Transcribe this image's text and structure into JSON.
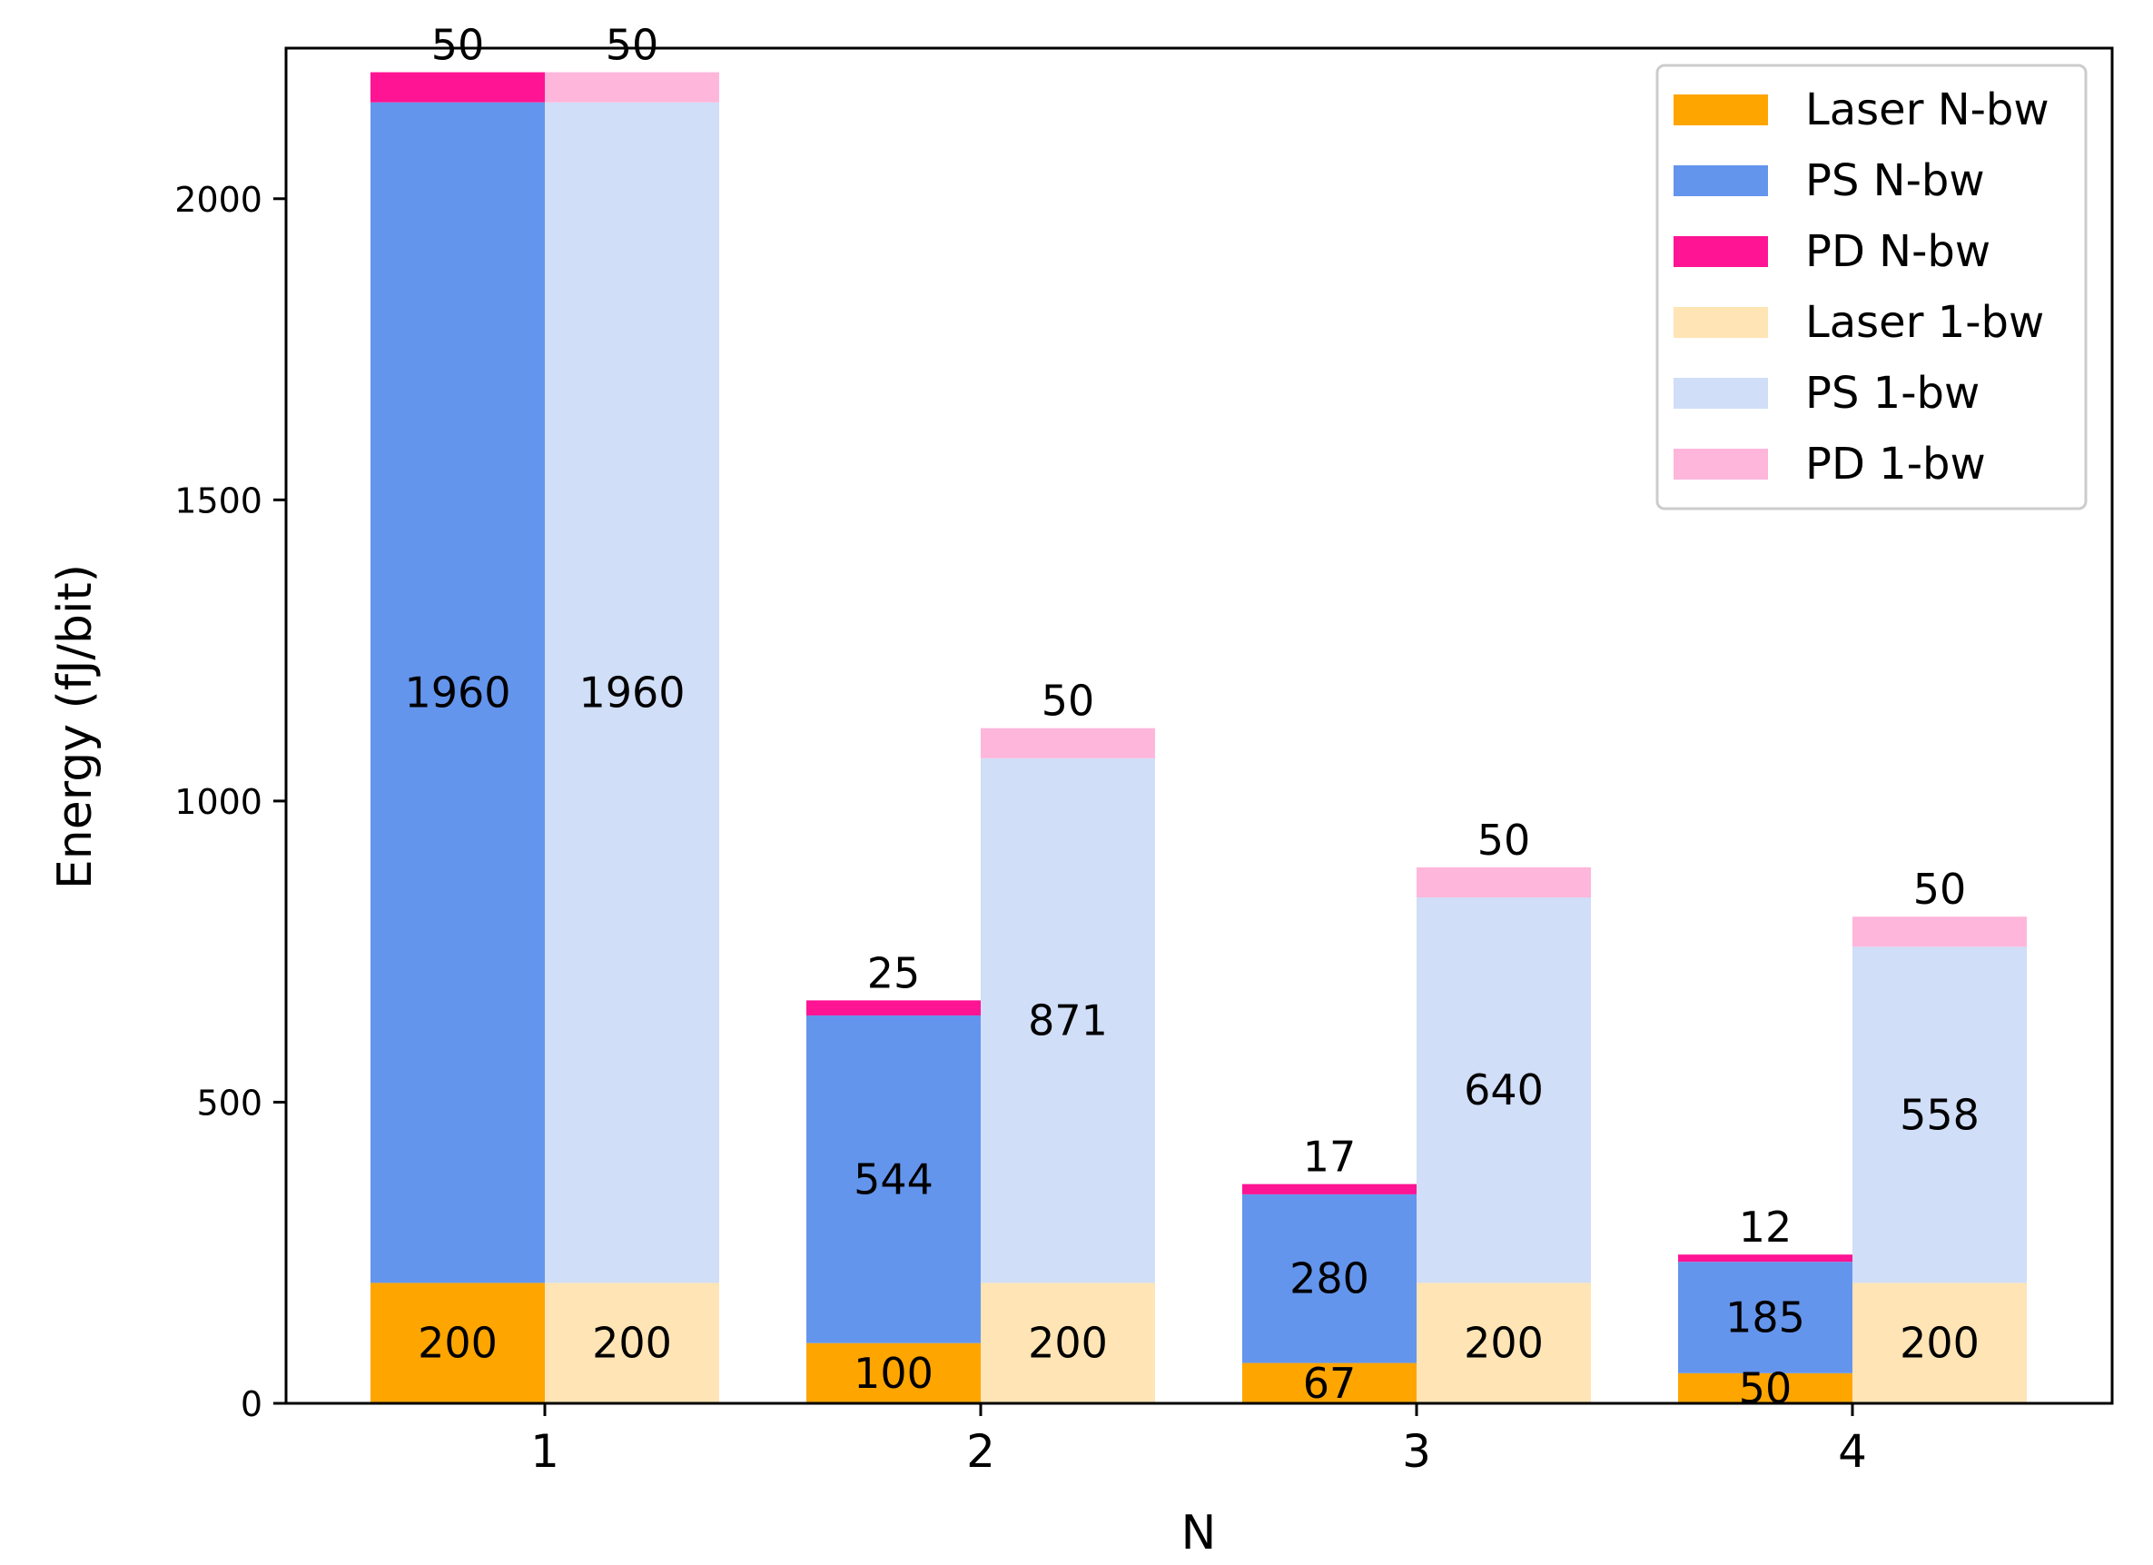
{
  "chart_data": {
    "type": "bar",
    "stacked": true,
    "grouped": true,
    "categories": [
      "1",
      "2",
      "3",
      "4"
    ],
    "xlabel": "N",
    "ylabel": "Energy (fJ/bit)",
    "ylim": [
      0,
      2250
    ],
    "yticks": [
      0,
      500,
      1000,
      1500,
      2000
    ],
    "grid": false,
    "legend_position": "top-right",
    "groups": [
      {
        "name": "N-bw",
        "series": [
          {
            "name": "Laser N-bw",
            "color": "#FFA500",
            "values": [
              200,
              100,
              67,
              50
            ]
          },
          {
            "name": "PS N-bw",
            "color": "#6495ED",
            "values": [
              1960,
              544,
              280,
              185
            ]
          },
          {
            "name": "PD N-bw",
            "color": "#FF1493",
            "values": [
              50,
              25,
              17,
              12
            ]
          }
        ]
      },
      {
        "name": "1-bw",
        "series": [
          {
            "name": "Laser 1-bw",
            "color": "#FFE4B5",
            "values": [
              200,
              200,
              200,
              200
            ]
          },
          {
            "name": "PS 1-bw",
            "color": "#D0DEF7",
            "values": [
              1960,
              871,
              640,
              558
            ]
          },
          {
            "name": "PD 1-bw",
            "color": "#FFB6DB",
            "values": [
              50,
              50,
              50,
              50
            ]
          }
        ]
      }
    ]
  }
}
